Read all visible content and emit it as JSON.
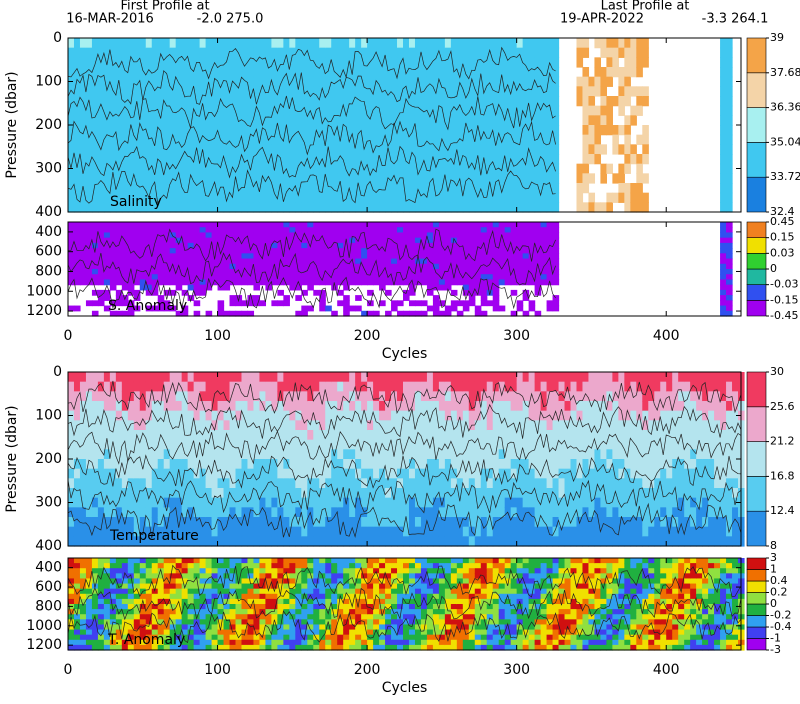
{
  "header": {
    "first_label": "First Profile at",
    "first_date": "16-MAR-2016",
    "first_pos": "-2.0 275.0",
    "last_label": "Last Profile at",
    "last_date": "19-APR-2022",
    "last_pos": "-3.3 264.1"
  },
  "chart_data": [
    {
      "type": "contour",
      "title": "Salinity",
      "ylabel": "Pressure (dbar)",
      "xlim": [
        0,
        450
      ],
      "xticks": [
        0,
        100,
        200,
        300,
        400
      ],
      "ylim": [
        0,
        400
      ],
      "yticks": [
        0,
        100,
        200,
        300,
        400
      ],
      "colorbar": {
        "ticks": [
          32.4,
          33.72,
          35.04,
          36.36,
          37.68,
          39
        ],
        "colors": [
          "#1a80e0",
          "#40c8f0",
          "#a8f0f0",
          "#f4d4a8",
          "#f4a448"
        ]
      }
    },
    {
      "type": "contour",
      "title": "S. Anomaly",
      "xlabel": "Cycles",
      "xlim": [
        0,
        450
      ],
      "xticks": [
        0,
        100,
        200,
        300,
        400
      ],
      "ylim": [
        300,
        1250
      ],
      "yticks": [
        400,
        600,
        800,
        1000,
        1200
      ],
      "colorbar": {
        "ticks": [
          -0.45,
          -0.15,
          -0.03,
          0,
          0.03,
          0.15,
          0.45
        ],
        "colors": [
          "#a000f0",
          "#3050f0",
          "#20b8a0",
          "#30d030",
          "#f0e000",
          "#f08020"
        ]
      }
    },
    {
      "type": "contour",
      "title": "Temperature",
      "ylabel": "Pressure (dbar)",
      "xlim": [
        0,
        450
      ],
      "xticks": [
        0,
        100,
        200,
        300,
        400
      ],
      "ylim": [
        0,
        400
      ],
      "yticks": [
        0,
        100,
        200,
        300,
        400
      ],
      "colorbar": {
        "ticks": [
          8,
          12.4,
          16.8,
          21.2,
          25.6,
          30
        ],
        "colors": [
          "#2a90e8",
          "#58ccf0",
          "#b4e4ee",
          "#eca8cc",
          "#f03a60"
        ]
      }
    },
    {
      "type": "contour",
      "title": "T. Anomaly",
      "xlabel": "Cycles",
      "xlim": [
        0,
        450
      ],
      "xticks": [
        0,
        100,
        200,
        300,
        400
      ],
      "ylim": [
        300,
        1250
      ],
      "yticks": [
        400,
        600,
        800,
        1000,
        1200
      ],
      "colorbar": {
        "ticks": [
          -3,
          -1,
          -0.4,
          -0.2,
          0,
          0.2,
          0.4,
          1,
          3
        ],
        "colors": [
          "#a000f0",
          "#4040f0",
          "#30a0f0",
          "#20b040",
          "#90e040",
          "#f0e000",
          "#f07000",
          "#d01010"
        ]
      }
    }
  ]
}
